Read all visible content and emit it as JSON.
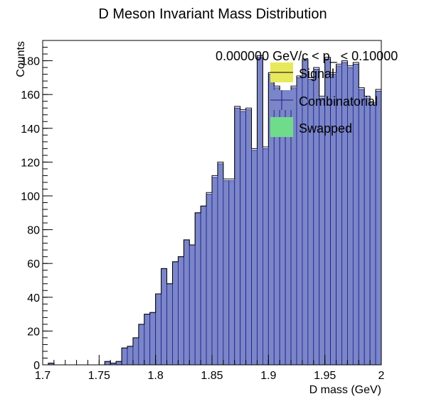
{
  "chart_data": {
    "type": "bar",
    "title": "D Meson Invariant Mass Distribution",
    "xlabel": "D mass  (GeV)",
    "ylabel": "Counts",
    "pt_label": "0.000000 GeV/c < p_ < 0.10000",
    "xlim": [
      1.7,
      2.0
    ],
    "ylim": [
      0,
      192
    ],
    "x_ticks": [
      "1.7",
      "1.75",
      "1.8",
      "1.85",
      "1.9",
      "1.95",
      "2"
    ],
    "y_ticks": [
      "0",
      "20",
      "40",
      "60",
      "80",
      "100",
      "120",
      "140",
      "160",
      "180"
    ],
    "bin_width": 0.005,
    "x": [
      1.7025,
      1.7075,
      1.7125,
      1.7175,
      1.7225,
      1.7275,
      1.7325,
      1.7375,
      1.7425,
      1.7475,
      1.7525,
      1.7575,
      1.7625,
      1.7675,
      1.7725,
      1.7775,
      1.7825,
      1.7875,
      1.7925,
      1.7975,
      1.8025,
      1.8075,
      1.8125,
      1.8175,
      1.8225,
      1.8275,
      1.8325,
      1.8375,
      1.8425,
      1.8475,
      1.8525,
      1.8575,
      1.8625,
      1.8675,
      1.8725,
      1.8775,
      1.8825,
      1.8875,
      1.8925,
      1.8975,
      1.9025,
      1.9075,
      1.9125,
      1.9175,
      1.9225,
      1.9275,
      1.9325,
      1.9375,
      1.9425,
      1.9475,
      1.9525,
      1.9575,
      1.9625,
      1.9675,
      1.9725,
      1.9775,
      1.9825,
      1.9875,
      1.9925,
      1.9975
    ],
    "series": [
      {
        "name": "Signal",
        "values": [
          0,
          0,
          0,
          0,
          0,
          0,
          0,
          0,
          0,
          0,
          0,
          0,
          0,
          0,
          0,
          0,
          0,
          0,
          0,
          0,
          0,
          0,
          0,
          0,
          0,
          0,
          0,
          0,
          0,
          1,
          1,
          1,
          1,
          1,
          1,
          1,
          1,
          1,
          1,
          1,
          1,
          1,
          1,
          1,
          1,
          1,
          1,
          1,
          1,
          1,
          1,
          1,
          1,
          1,
          1,
          1,
          1,
          1,
          1,
          1
        ]
      },
      {
        "name": "Combinatorial",
        "values": [
          0,
          1,
          0,
          0,
          0,
          0,
          0,
          0,
          0,
          0,
          0,
          2,
          1,
          2,
          10,
          11,
          16,
          24,
          30,
          31,
          42,
          57,
          48,
          61,
          64,
          74,
          71,
          90,
          94,
          101,
          111,
          119,
          109,
          109,
          152,
          150,
          151,
          127,
          182,
          128,
          172,
          164,
          160,
          161,
          164,
          170,
          180,
          169,
          175,
          158,
          181,
          172,
          177,
          179,
          176,
          178,
          163,
          158,
          154,
          162
        ]
      },
      {
        "name": "Swapped",
        "values": [
          0,
          0,
          0,
          0,
          0,
          0,
          0,
          0,
          0,
          0,
          0,
          0,
          0,
          0,
          0,
          0,
          0,
          0,
          0,
          0,
          0,
          0,
          0,
          0,
          0,
          0,
          0,
          0,
          0,
          0,
          0,
          0,
          0,
          0,
          0,
          0,
          0,
          0,
          0,
          0,
          0,
          0,
          0,
          0,
          0,
          0,
          0,
          0,
          0,
          0,
          0,
          0,
          0,
          0,
          0,
          0,
          0,
          0,
          0,
          0
        ]
      }
    ],
    "totals": [
      0,
      1,
      0,
      0,
      0,
      0,
      0,
      0,
      0,
      0,
      0,
      2,
      1,
      2,
      10,
      11,
      16,
      24,
      30,
      31,
      42,
      57,
      48,
      61,
      64,
      74,
      71,
      90,
      94,
      102,
      112,
      120,
      110,
      110,
      153,
      151,
      152,
      128,
      183,
      129,
      173,
      165,
      161,
      162,
      165,
      171,
      181,
      170,
      176,
      159,
      182,
      173,
      178,
      180,
      177,
      179,
      164,
      159,
      155,
      163
    ],
    "legend": [
      {
        "label": "Signal",
        "color": "#e8e85c"
      },
      {
        "label": "Combinatorial",
        "color": "#7b86c8"
      },
      {
        "label": "Swapped",
        "color": "#6fdc8c"
      }
    ],
    "colors": {
      "combinatorial": "#7b86c8",
      "combinatorial_edge": "#1a1a8a",
      "signal": "#e8e85c",
      "swapped": "#6fdc8c",
      "total_outline": "#000000"
    },
    "legend_position": "top-right",
    "grid": false
  }
}
